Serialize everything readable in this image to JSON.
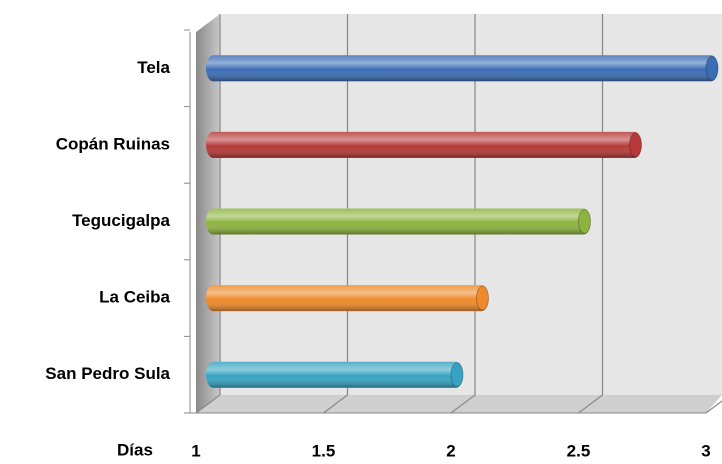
{
  "chart_data": {
    "type": "bar",
    "orientation": "horizontal",
    "categories": [
      "Tela",
      "Copán Ruinas",
      "Tegucigalpa",
      "La Ceiba",
      "San Pedro Sula"
    ],
    "values": [
      3,
      2.7,
      2.5,
      2.1,
      2
    ],
    "colors": [
      "#3b6db4",
      "#b53a39",
      "#8db43e",
      "#ee8a2b",
      "#36a3c2"
    ],
    "x_label": "Días",
    "xlim": [
      1,
      3
    ],
    "xticks": [
      1,
      1.5,
      2,
      2.5,
      3
    ],
    "grid": true
  }
}
